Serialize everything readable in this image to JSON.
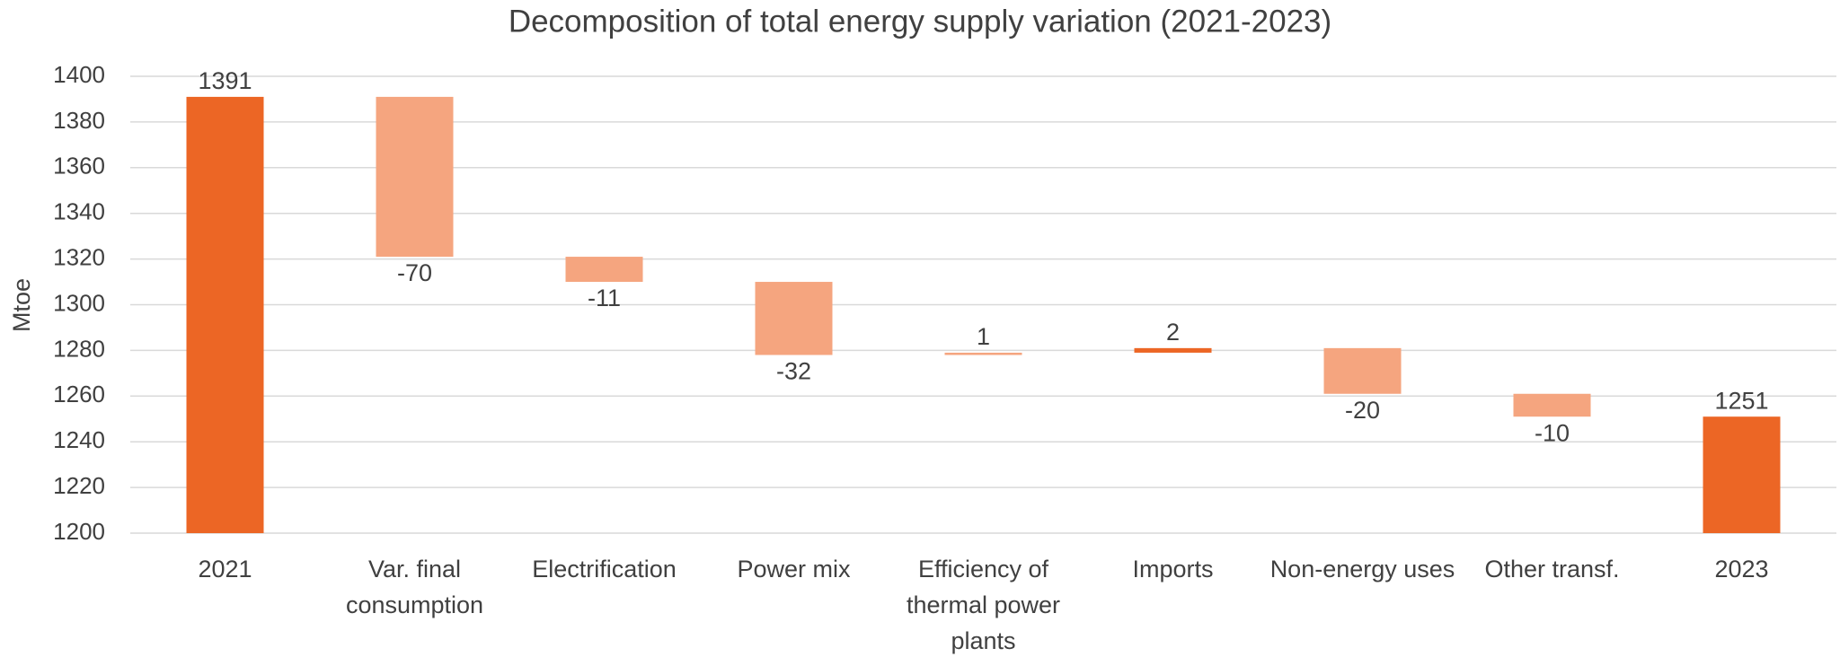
{
  "chart_data": {
    "type": "waterfall",
    "title": "Decomposition of total energy supply variation (2021-2023)",
    "y_label": "Mtoe",
    "categories": [
      "2021",
      "Var. final consumption",
      "Electrification",
      "Power mix",
      "Efficiency of thermal power plants",
      "Imports",
      "Non-energy uses",
      "Other transf.",
      "2023"
    ],
    "values": [
      1391,
      -70,
      -11,
      -32,
      1,
      2,
      -20,
      -10,
      1251
    ],
    "is_total": [
      true,
      false,
      false,
      false,
      false,
      false,
      false,
      false,
      true
    ],
    "colors": [
      "#ec6625",
      "#f5a57f",
      "#f5a57f",
      "#f5a57f",
      "#f5a57f",
      "#ec6625",
      "#f5a57f",
      "#f5a57f",
      "#ec6625"
    ],
    "ylim": [
      1200,
      1400
    ],
    "yticks": [
      1200,
      1220,
      1240,
      1260,
      1280,
      1300,
      1320,
      1340,
      1360,
      1380,
      1400
    ],
    "grid": true
  }
}
